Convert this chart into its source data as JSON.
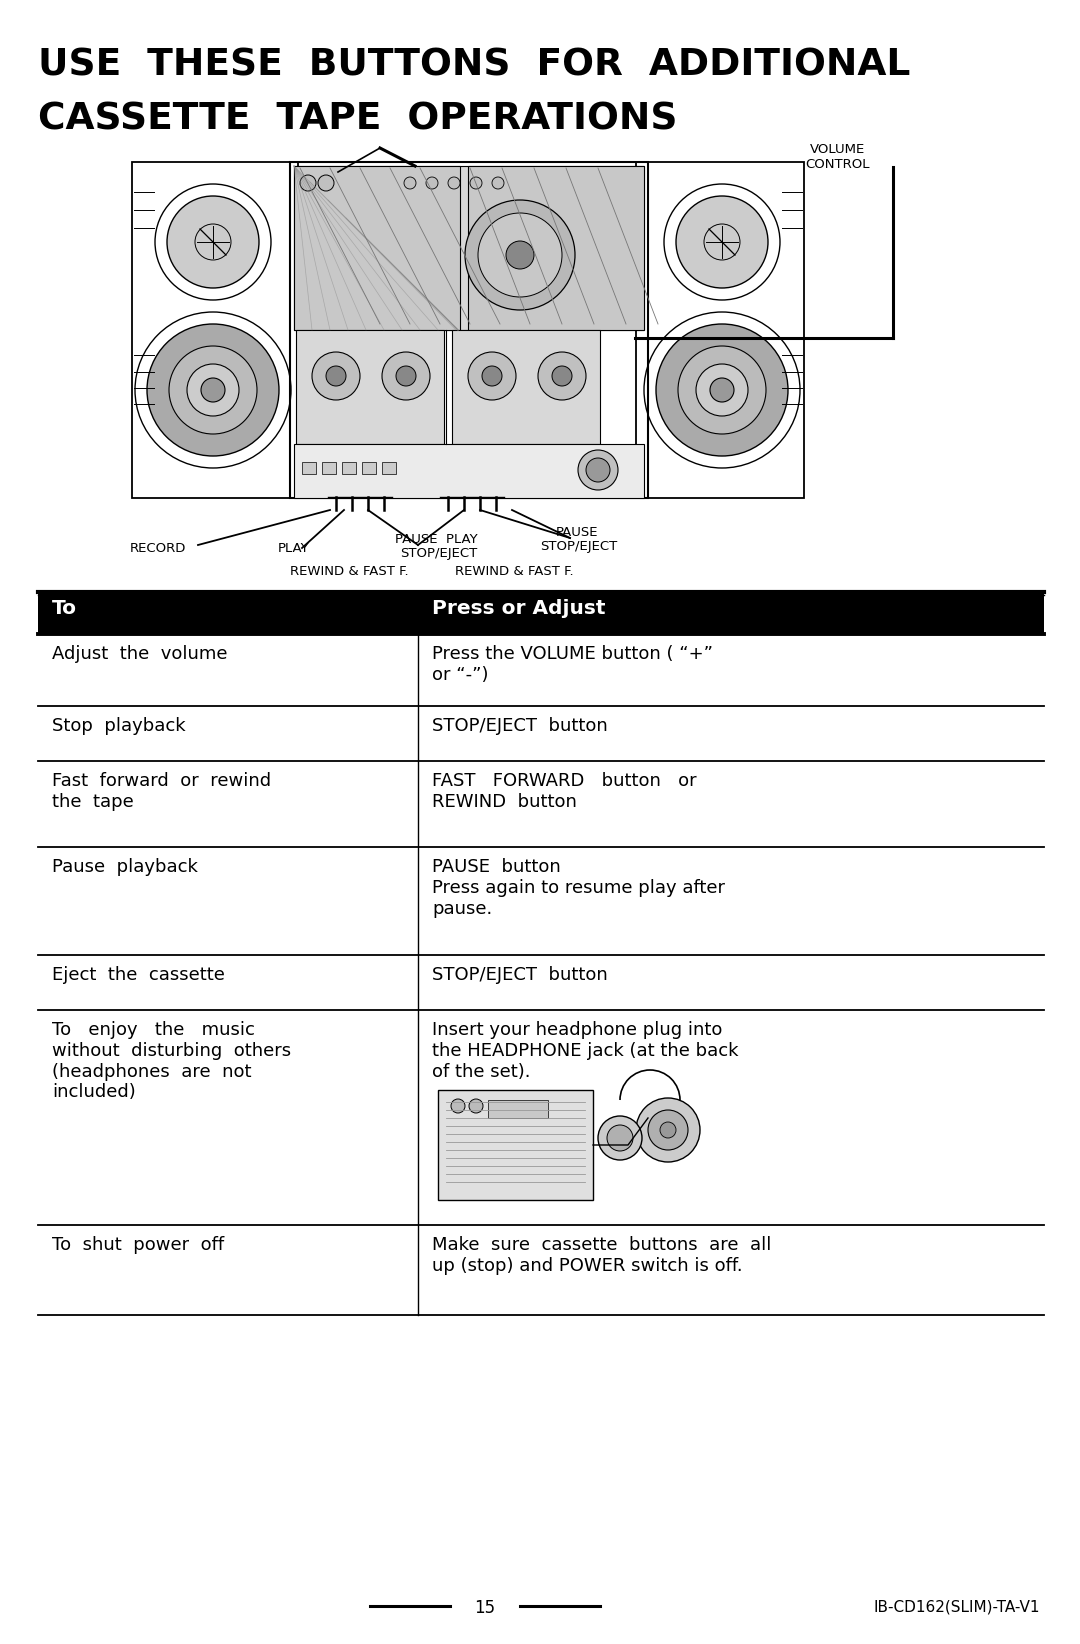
{
  "title_line1": "USE  THESE  BUTTONS  FOR  ADDITIONAL",
  "title_line2": "CASSETTE  TAPE  OPERATIONS",
  "bg_color": "#ffffff",
  "text_color": "#000000",
  "table_header_left": "To",
  "table_header_right": "Press or Adjust",
  "rows": [
    {
      "left": "Adjust  the  volume",
      "right": "Press the VOLUME button ( “+”\nor “-”)"
    },
    {
      "left": "Stop  playback",
      "right": "STOP/EJECT  button"
    },
    {
      "left": "Fast  forward  or  rewind\nthe  tape",
      "right": "FAST   FORWARD   button   or\nREWIND  button"
    },
    {
      "left": "Pause  playback",
      "right": "PAUSE  button\nPress again to resume play after\npause."
    },
    {
      "left": "Eject  the  cassette",
      "right": "STOP/EJECT  button"
    },
    {
      "left": "To   enjoy   the   music\nwithout  disturbing  others\n(headphones  are  not\nincluded)",
      "right": "Insert your headphone plug into\nthe HEADPHONE jack (at the back\nof the set)."
    },
    {
      "left": "To  shut  power  off",
      "right": "Make  sure  cassette  buttons  are  all\nup (stop) and POWER switch is off."
    }
  ],
  "volume_control_label": "VOLUME\nCONTROL",
  "page_number": "15",
  "model_number": "IB-CD162(SLIM)-TA-V1",
  "header_bg": "#000000"
}
